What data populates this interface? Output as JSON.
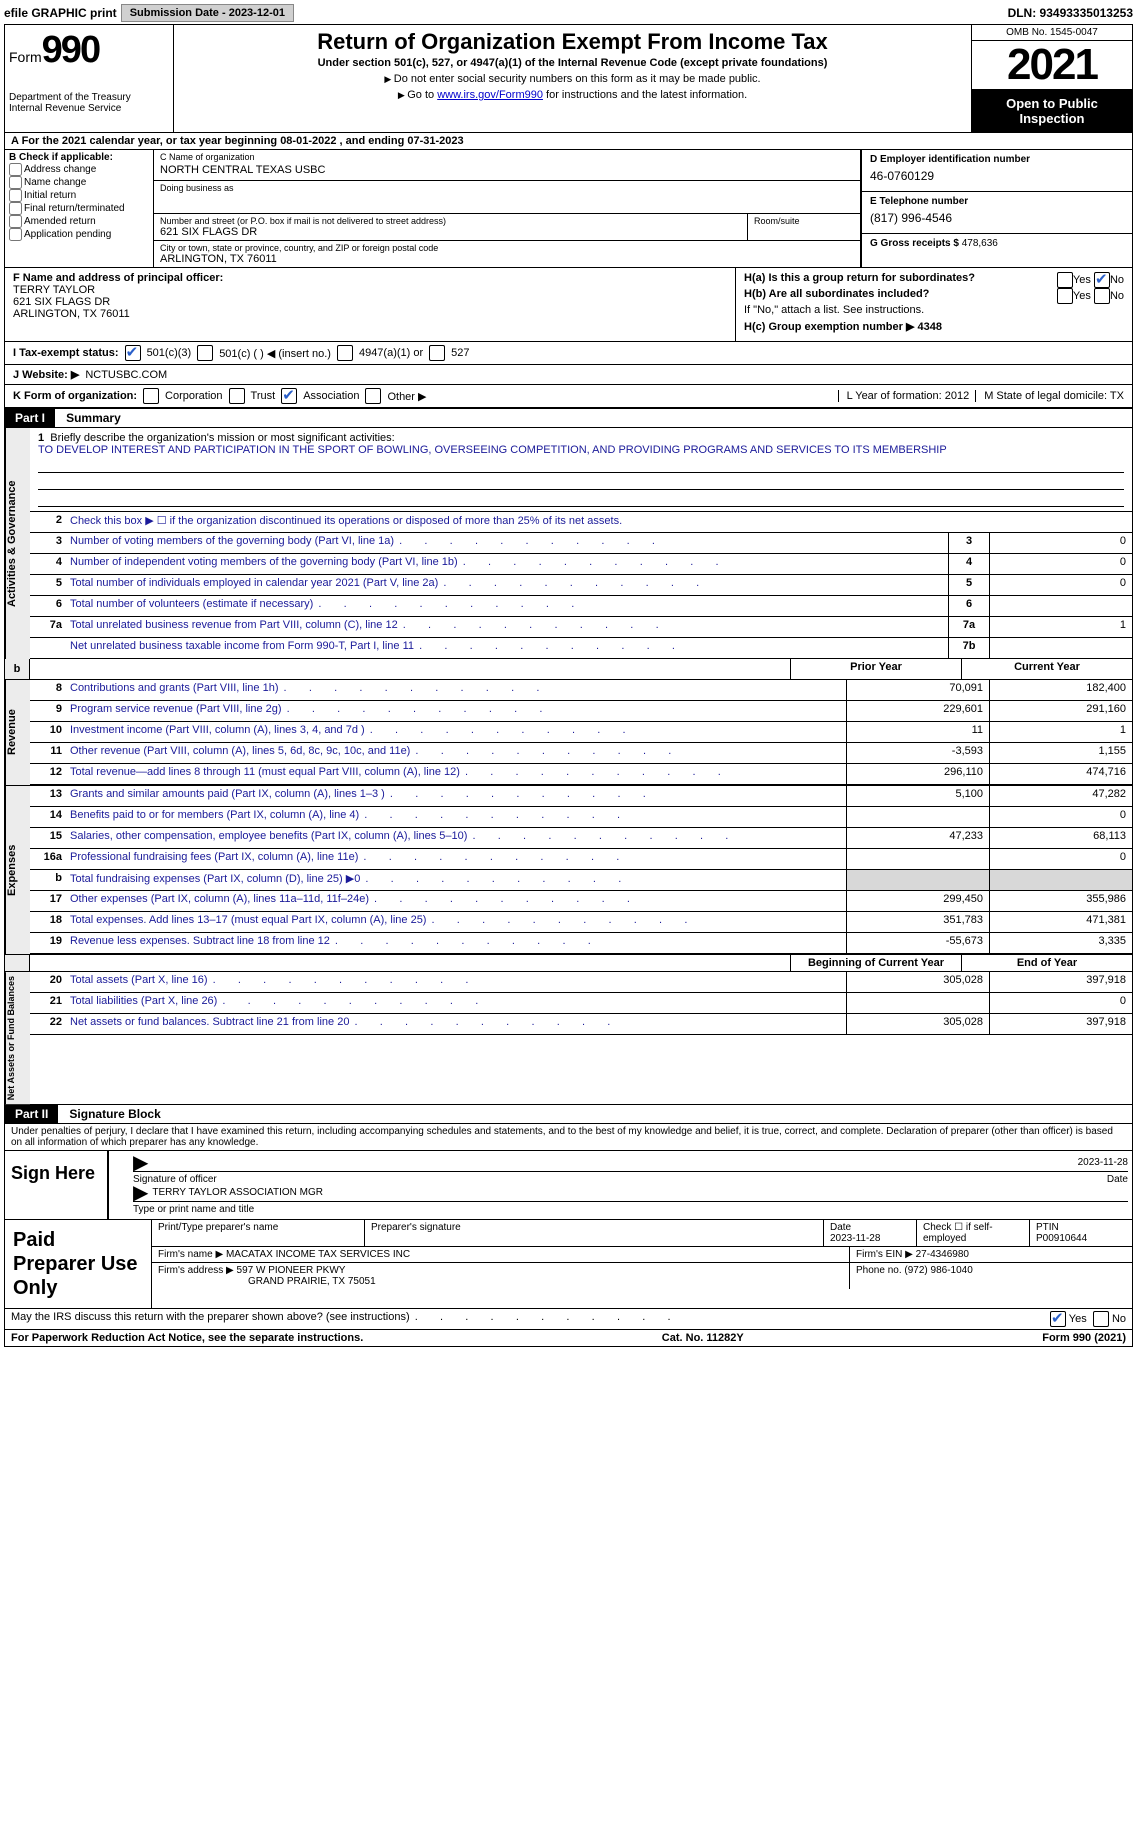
{
  "top": {
    "efile": "efile GRAPHIC print",
    "submission": "Submission Date - 2023-12-01",
    "dln": "DLN: 93493335013253"
  },
  "header": {
    "form_prefix": "Form",
    "form_num": "990",
    "dept": "Department of the Treasury",
    "irs": "Internal Revenue Service",
    "title": "Return of Organization Exempt From Income Tax",
    "sub": "Under section 501(c), 527, or 4947(a)(1) of the Internal Revenue Code (except private foundations)",
    "note1": "Do not enter social security numbers on this form as it may be made public.",
    "note2_pre": "Go to ",
    "note2_link": "www.irs.gov/Form990",
    "note2_post": " for instructions and the latest information.",
    "omb": "OMB No. 1545-0047",
    "year": "2021",
    "inspection": "Open to Public Inspection"
  },
  "rowA": "A For the 2021 calendar year, or tax year beginning 08-01-2022   , and ending 07-31-2023",
  "colB": {
    "title": "B Check if applicable:",
    "items": [
      "Address change",
      "Name change",
      "Initial return",
      "Final return/terminated",
      "Amended return",
      "Application pending"
    ]
  },
  "colC": {
    "name_lbl": "C Name of organization",
    "name": "NORTH CENTRAL TEXAS USBC",
    "dba_lbl": "Doing business as",
    "addr_lbl": "Number and street (or P.O. box if mail is not delivered to street address)",
    "addr": "621 SIX FLAGS DR",
    "room_lbl": "Room/suite",
    "city_lbl": "City or town, state or province, country, and ZIP or foreign postal code",
    "city": "ARLINGTON, TX  76011"
  },
  "colD": {
    "lbl": "D Employer identification number",
    "val": "46-0760129"
  },
  "colE": {
    "lbl": "E Telephone number",
    "val": "(817) 996-4546"
  },
  "colG": {
    "lbl": "G Gross receipts $",
    "val": "478,636"
  },
  "rowF": {
    "lbl": "F Name and address of principal officer:",
    "name": "TERRY TAYLOR",
    "addr1": "621 SIX FLAGS DR",
    "addr2": "ARLINGTON, TX  76011"
  },
  "rowH": {
    "ha": "H(a)  Is this a group return for subordinates?",
    "hb": "H(b)  Are all subordinates included?",
    "hb_note": "If \"No,\" attach a list. See instructions.",
    "hc": "H(c)  Group exemption number ▶  4348",
    "yes": "Yes",
    "no": "No"
  },
  "rowI": {
    "lbl": "I  Tax-exempt status:",
    "opt1": "501(c)(3)",
    "opt2": "501(c) (  ) ◀ (insert no.)",
    "opt3": "4947(a)(1) or",
    "opt4": "527"
  },
  "rowJ": {
    "lbl": "J  Website: ▶",
    "val": "NCTUSBC.COM"
  },
  "rowK": {
    "lbl": "K Form of organization:",
    "opts": [
      "Corporation",
      "Trust",
      "Association",
      "Other ▶"
    ],
    "L": "L Year of formation: 2012",
    "M": "M State of legal domicile: TX"
  },
  "part1": {
    "hdr": "Part I",
    "title": "Summary"
  },
  "mission": {
    "q": "Briefly describe the organization's mission or most significant activities:",
    "text": "TO DEVELOP INTEREST AND PARTICIPATION IN THE SPORT OF BOWLING, OVERSEEING COMPETITION, AND PROVIDING PROGRAMS AND SERVICES TO ITS MEMBERSHIP"
  },
  "lines_ag": [
    {
      "n": "2",
      "t": "Check this box ▶ ☐ if the organization discontinued its operations or disposed of more than 25% of its net assets."
    },
    {
      "n": "3",
      "t": "Number of voting members of the governing body (Part VI, line 1a)",
      "c": "3",
      "v": "0"
    },
    {
      "n": "4",
      "t": "Number of independent voting members of the governing body (Part VI, line 1b)",
      "c": "4",
      "v": "0"
    },
    {
      "n": "5",
      "t": "Total number of individuals employed in calendar year 2021 (Part V, line 2a)",
      "c": "5",
      "v": "0"
    },
    {
      "n": "6",
      "t": "Total number of volunteers (estimate if necessary)",
      "c": "6",
      "v": ""
    },
    {
      "n": "7a",
      "t": "Total unrelated business revenue from Part VIII, column (C), line 12",
      "c": "7a",
      "v": "1"
    },
    {
      "n": "",
      "t": "Net unrelated business taxable income from Form 990-T, Part I, line 11",
      "c": "7b",
      "v": ""
    }
  ],
  "col_hdrs": {
    "prior": "Prior Year",
    "current": "Current Year"
  },
  "revenue": [
    {
      "n": "8",
      "t": "Contributions and grants (Part VIII, line 1h)",
      "p": "70,091",
      "c": "182,400"
    },
    {
      "n": "9",
      "t": "Program service revenue (Part VIII, line 2g)",
      "p": "229,601",
      "c": "291,160"
    },
    {
      "n": "10",
      "t": "Investment income (Part VIII, column (A), lines 3, 4, and 7d )",
      "p": "11",
      "c": "1"
    },
    {
      "n": "11",
      "t": "Other revenue (Part VIII, column (A), lines 5, 6d, 8c, 9c, 10c, and 11e)",
      "p": "-3,593",
      "c": "1,155"
    },
    {
      "n": "12",
      "t": "Total revenue—add lines 8 through 11 (must equal Part VIII, column (A), line 12)",
      "p": "296,110",
      "c": "474,716"
    }
  ],
  "expenses": [
    {
      "n": "13",
      "t": "Grants and similar amounts paid (Part IX, column (A), lines 1–3 )",
      "p": "5,100",
      "c": "47,282"
    },
    {
      "n": "14",
      "t": "Benefits paid to or for members (Part IX, column (A), line 4)",
      "p": "",
      "c": "0"
    },
    {
      "n": "15",
      "t": "Salaries, other compensation, employee benefits (Part IX, column (A), lines 5–10)",
      "p": "47,233",
      "c": "68,113"
    },
    {
      "n": "16a",
      "t": "Professional fundraising fees (Part IX, column (A), line 11e)",
      "p": "",
      "c": "0"
    },
    {
      "n": "b",
      "t": "Total fundraising expenses (Part IX, column (D), line 25) ▶0",
      "p": "GRAY",
      "c": "GRAY"
    },
    {
      "n": "17",
      "t": "Other expenses (Part IX, column (A), lines 11a–11d, 11f–24e)",
      "p": "299,450",
      "c": "355,986"
    },
    {
      "n": "18",
      "t": "Total expenses. Add lines 13–17 (must equal Part IX, column (A), line 25)",
      "p": "351,783",
      "c": "471,381"
    },
    {
      "n": "19",
      "t": "Revenue less expenses. Subtract line 18 from line 12",
      "p": "-55,673",
      "c": "3,335"
    }
  ],
  "col_hdrs2": {
    "begin": "Beginning of Current Year",
    "end": "End of Year"
  },
  "netassets": [
    {
      "n": "20",
      "t": "Total assets (Part X, line 16)",
      "p": "305,028",
      "c": "397,918"
    },
    {
      "n": "21",
      "t": "Total liabilities (Part X, line 26)",
      "p": "",
      "c": "0"
    },
    {
      "n": "22",
      "t": "Net assets or fund balances. Subtract line 21 from line 20",
      "p": "305,028",
      "c": "397,918"
    }
  ],
  "vtabs": {
    "ag": "Activities & Governance",
    "rev": "Revenue",
    "exp": "Expenses",
    "na": "Net Assets or Fund Balances"
  },
  "part2": {
    "hdr": "Part II",
    "title": "Signature Block"
  },
  "sig": {
    "perjury": "Under penalties of perjury, I declare that I have examined this return, including accompanying schedules and statements, and to the best of my knowledge and belief, it is true, correct, and complete. Declaration of preparer (other than officer) is based on all information of which preparer has any knowledge.",
    "sign_here": "Sign Here",
    "date": "2023-11-28",
    "sig_lbl": "Signature of officer",
    "date_lbl": "Date",
    "name": "TERRY TAYLOR  ASSOCIATION MGR",
    "name_lbl": "Type or print name and title"
  },
  "prep": {
    "title": "Paid Preparer Use Only",
    "h1": "Print/Type preparer's name",
    "h2": "Preparer's signature",
    "h3": "Date",
    "h3v": "2023-11-28",
    "h4": "Check ☐ if self-employed",
    "h5": "PTIN",
    "h5v": "P00910644",
    "firm_lbl": "Firm's name    ▶",
    "firm": "MACATAX INCOME TAX SERVICES INC",
    "ein_lbl": "Firm's EIN ▶",
    "ein": "27-4346980",
    "addr_lbl": "Firm's address ▶",
    "addr1": "597 W PIONEER PKWY",
    "addr2": "GRAND PRAIRIE, TX  75051",
    "phone_lbl": "Phone no.",
    "phone": "(972) 986-1040"
  },
  "bottom": {
    "q": "May the IRS discuss this return with the preparer shown above? (see instructions)",
    "yes": "Yes",
    "no": "No"
  },
  "footer": {
    "left": "For Paperwork Reduction Act Notice, see the separate instructions.",
    "mid": "Cat. No. 11282Y",
    "right": "Form 990 (2021)"
  }
}
